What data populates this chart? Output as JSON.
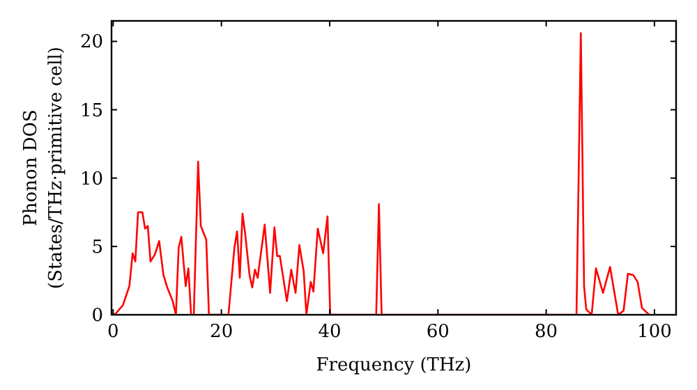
{
  "chart_data": {
    "type": "line",
    "xlabel": "Frequency (THz)",
    "ylabel": "Phonon DOS\n(States/THz·primitive cell)",
    "xlim": [
      -0.3,
      104
    ],
    "ylim": [
      0,
      21.5
    ],
    "xticks": [
      0,
      20,
      40,
      60,
      80,
      100
    ],
    "yticks": [
      0,
      5,
      10,
      15,
      20
    ],
    "grid": false,
    "marker": "none",
    "line_style": "solid",
    "series": [
      {
        "color": "#ff0000",
        "x": [
          0,
          0.5,
          1.8,
          3,
          3.6,
          4.1,
          4.6,
          5.4,
          5.9,
          6.4,
          6.9,
          7.7,
          8.5,
          9.3,
          10,
          11,
          11.6,
          12.1,
          12.6,
          13.4,
          13.9,
          14.4,
          14.9,
          15.7,
          16.2,
          17.2,
          17.7,
          21.3,
          22.4,
          22.9,
          23.4,
          23.9,
          24.4,
          25.2,
          25.7,
          26.2,
          26.7,
          28,
          29,
          29.8,
          30.3,
          30.8,
          32.1,
          32.9,
          33.7,
          34.4,
          35.2,
          35.7,
          36.5,
          37,
          37.8,
          38.8,
          39.6,
          40.1,
          48.6,
          49.1,
          49.6,
          85.6,
          86.4,
          87,
          87.4,
          88.4,
          89.2,
          90.5,
          91.8,
          93.3,
          94.3,
          95.1,
          96.1,
          96.9,
          97.7,
          99
        ],
        "values": [
          0,
          0.1,
          0.7,
          2.1,
          4.5,
          3.9,
          7.5,
          7.5,
          6.3,
          6.5,
          3.9,
          4.4,
          5.4,
          2.9,
          2,
          1,
          0,
          4.9,
          5.7,
          2.1,
          3.4,
          0,
          0,
          11.2,
          6.5,
          5.5,
          0,
          0,
          4.9,
          6.1,
          2.7,
          7.4,
          5.9,
          2.9,
          2,
          3.3,
          2.7,
          6.6,
          1.6,
          6.4,
          4.3,
          4.3,
          1,
          3.3,
          1.6,
          5.1,
          3.2,
          0,
          2.4,
          1.7,
          6.3,
          4.5,
          7.2,
          0,
          0,
          8.1,
          0,
          0,
          20.6,
          2.1,
          0.4,
          0,
          3.4,
          1.6,
          3.5,
          0,
          0.3,
          3,
          2.9,
          2.4,
          0.5,
          0
        ]
      }
    ]
  }
}
